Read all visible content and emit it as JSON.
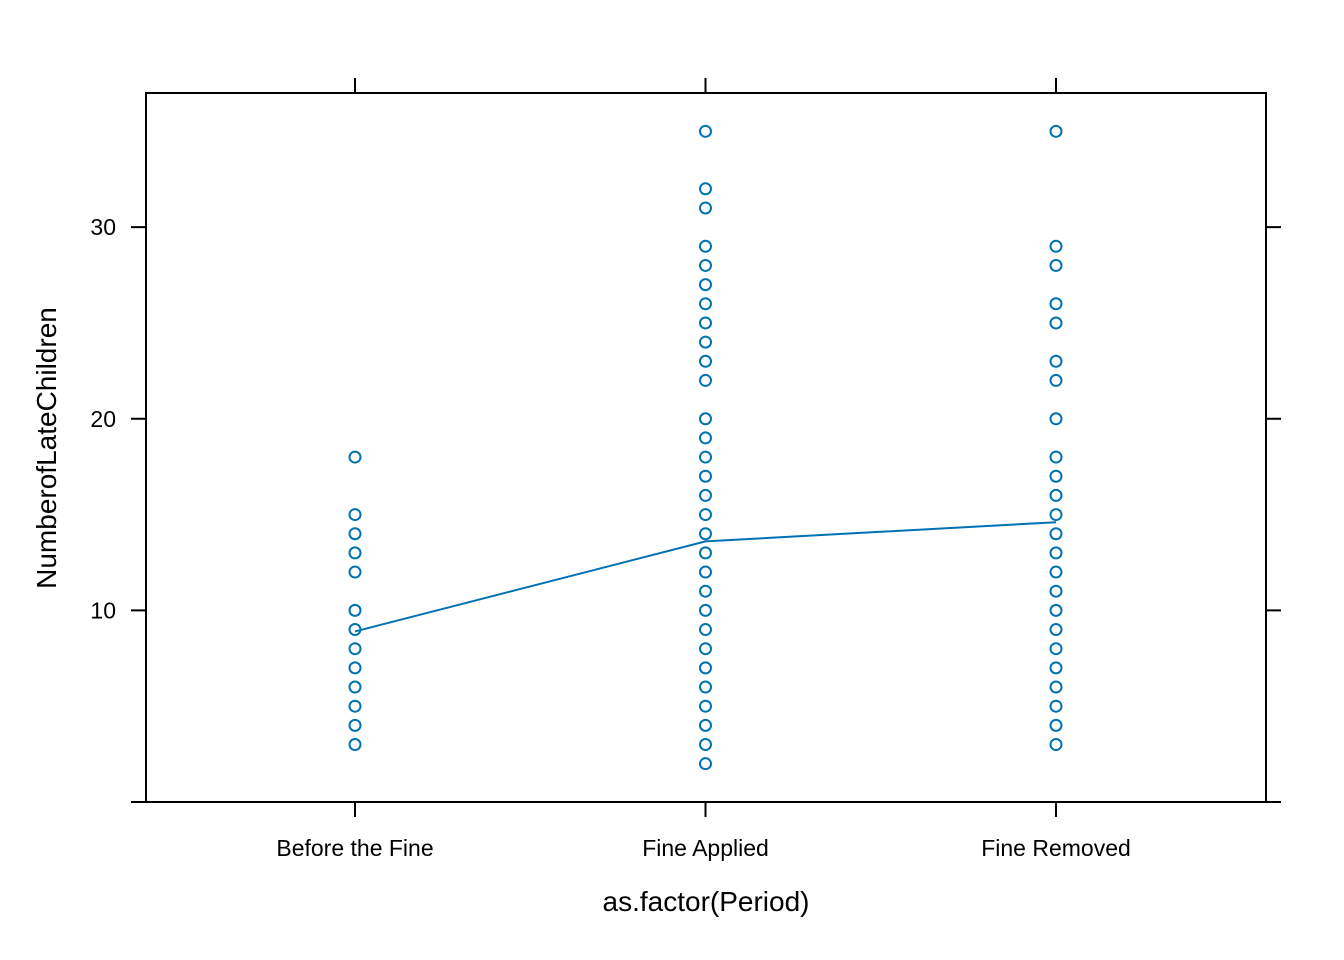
{
  "chart_data": {
    "type": "scatter",
    "title": "",
    "xlabel": "as.factor(Period)",
    "ylabel": "NumberofLateChildren",
    "categories": [
      "Before the Fine",
      "Fine Applied",
      "Fine Removed"
    ],
    "ylim": [
      0,
      37
    ],
    "yticks": [
      10,
      20,
      30
    ],
    "grid": false,
    "legend": "none",
    "point_color": "#0072B2",
    "line_color": "#0072B2",
    "points": [
      {
        "category": "Before the Fine",
        "values": [
          3,
          4,
          5,
          6,
          7,
          8,
          9,
          10,
          12,
          13,
          14,
          15,
          18
        ]
      },
      {
        "category": "Fine Applied",
        "values": [
          2,
          3,
          4,
          5,
          6,
          7,
          8,
          9,
          10,
          11,
          12,
          13,
          14,
          15,
          16,
          17,
          18,
          19,
          20,
          22,
          23,
          24,
          25,
          26,
          27,
          28,
          29,
          31,
          32,
          35
        ]
      },
      {
        "category": "Fine Removed",
        "values": [
          3,
          4,
          5,
          6,
          7,
          8,
          9,
          10,
          11,
          12,
          13,
          14,
          15,
          16,
          17,
          18,
          20,
          22,
          23,
          25,
          26,
          28,
          29,
          35
        ]
      }
    ],
    "mean_line": {
      "name": "",
      "values": [
        8.9,
        13.6,
        14.6
      ]
    }
  }
}
